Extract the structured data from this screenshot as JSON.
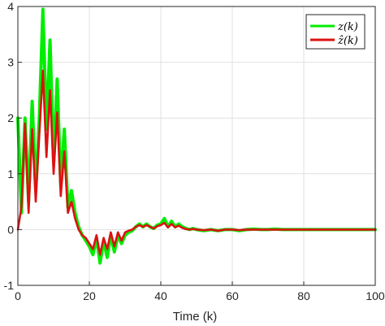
{
  "chart_data": {
    "type": "line",
    "title": "",
    "xlabel": "Time (k)",
    "ylabel": "",
    "xlim": [
      0,
      100
    ],
    "ylim": [
      -1,
      4
    ],
    "xticks": [
      0,
      20,
      40,
      60,
      80,
      100
    ],
    "yticks": [
      -1,
      0,
      1,
      2,
      3,
      4
    ],
    "xtick_labels": [
      "0",
      "20",
      "40",
      "60",
      "80",
      "100"
    ],
    "ytick_labels": [
      "-1",
      "0",
      "1",
      "2",
      "3",
      "4"
    ],
    "grid": true,
    "legend_position": "top-right",
    "series": [
      {
        "name": "z(k)",
        "color": "#00ee00",
        "x": [
          0,
          1,
          2,
          3,
          4,
          5,
          6,
          7,
          8,
          9,
          10,
          11,
          12,
          13,
          14,
          15,
          16,
          17,
          18,
          19,
          20,
          21,
          22,
          23,
          24,
          25,
          26,
          27,
          28,
          29,
          30,
          31,
          32,
          33,
          34,
          35,
          36,
          37,
          38,
          39,
          40,
          41,
          42,
          43,
          44,
          45,
          46,
          47,
          48,
          49,
          50,
          52,
          54,
          56,
          58,
          60,
          62,
          64,
          66,
          68,
          70,
          72,
          74,
          76,
          78,
          80,
          85,
          90,
          95,
          100
        ],
        "y": [
          2.0,
          0.3,
          2.0,
          0.5,
          2.3,
          0.7,
          2.0,
          3.95,
          1.8,
          3.4,
          1.2,
          2.7,
          0.8,
          1.8,
          0.4,
          0.7,
          0.3,
          0.05,
          -0.1,
          -0.2,
          -0.3,
          -0.45,
          -0.15,
          -0.6,
          -0.2,
          -0.5,
          -0.1,
          -0.4,
          -0.1,
          -0.25,
          -0.1,
          -0.05,
          -0.02,
          0.05,
          0.1,
          0.05,
          0.1,
          0.05,
          0.02,
          0.08,
          0.1,
          0.2,
          0.05,
          0.15,
          0.05,
          0.1,
          0.05,
          0.02,
          0.0,
          0.02,
          0.0,
          -0.02,
          0.0,
          -0.02,
          0.0,
          0.0,
          -0.02,
          0.0,
          0.01,
          0.0,
          0.0,
          0.01,
          0.0,
          0.0,
          0.0,
          0.0,
          0.0,
          0.0,
          0.0,
          0.0
        ]
      },
      {
        "name": "ẑ(k)",
        "color": "#dd1111",
        "x": [
          0,
          1,
          2,
          3,
          4,
          5,
          6,
          7,
          8,
          9,
          10,
          11,
          12,
          13,
          14,
          15,
          16,
          17,
          18,
          19,
          20,
          21,
          22,
          23,
          24,
          25,
          26,
          27,
          28,
          29,
          30,
          31,
          32,
          33,
          34,
          35,
          36,
          37,
          38,
          39,
          40,
          41,
          42,
          43,
          44,
          45,
          46,
          47,
          48,
          49,
          50,
          52,
          54,
          56,
          58,
          60,
          62,
          64,
          66,
          68,
          70,
          72,
          74,
          76,
          78,
          80,
          85,
          90,
          95,
          100
        ],
        "y": [
          0.0,
          0.4,
          1.9,
          0.3,
          1.8,
          0.5,
          1.7,
          2.85,
          1.3,
          2.5,
          1.0,
          2.1,
          0.6,
          1.4,
          0.3,
          0.5,
          0.2,
          0.0,
          -0.1,
          -0.15,
          -0.25,
          -0.35,
          -0.1,
          -0.45,
          -0.15,
          -0.35,
          -0.05,
          -0.3,
          -0.05,
          -0.2,
          -0.05,
          -0.02,
          0.0,
          0.05,
          0.08,
          0.05,
          0.08,
          0.05,
          0.02,
          0.06,
          0.08,
          0.12,
          0.04,
          0.1,
          0.04,
          0.07,
          0.03,
          0.01,
          0.0,
          0.01,
          0.0,
          -0.01,
          0.0,
          -0.02,
          0.0,
          0.0,
          -0.01,
          0.0,
          0.0,
          0.0,
          0.0,
          0.0,
          0.0,
          0.0,
          0.0,
          0.0,
          0.0,
          0.0,
          0.0,
          0.0
        ]
      }
    ]
  }
}
